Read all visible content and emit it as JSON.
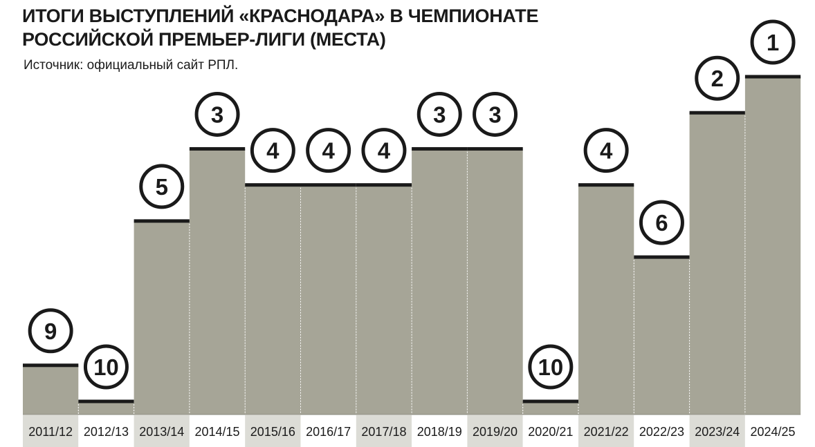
{
  "header": {
    "title_line1": "ИТОГИ ВЫСТУПЛЕНИЙ «КРАСНОДАРА» В ЧЕМПИОНАТЕ",
    "title_line2": "РОССИЙСКОЙ ПРЕМЬЕР-ЛИГИ (МЕСТА)",
    "source": "Источник: официальный сайт РПЛ."
  },
  "chart_data": {
    "type": "bar",
    "title": "ИТОГИ ВЫСТУПЛЕНИЙ «КРАСНОДАРА» В ЧЕМПИОНАТЕ РОССИЙСКОЙ ПРЕМЬЕР-ЛИГИ (МЕСТА)",
    "xlabel": "",
    "ylabel": "",
    "categories": [
      "2011/12",
      "2012/13",
      "2013/14",
      "2014/15",
      "2015/16",
      "2016/17",
      "2017/18",
      "2018/19",
      "2019/20",
      "2020/21",
      "2021/22",
      "2022/23",
      "2023/24",
      "2024/25"
    ],
    "values": [
      9,
      10,
      5,
      3,
      4,
      4,
      4,
      3,
      3,
      10,
      4,
      6,
      2,
      1
    ],
    "data_labels": [
      "9",
      "10",
      "5",
      "3",
      "4",
      "4",
      "4",
      "3",
      "3",
      "10",
      "4",
      "6",
      "2",
      "1"
    ],
    "y_axis": "place (inverted: 1st place is the tallest bar)",
    "ylim": [
      11,
      1
    ],
    "grid": false,
    "legend": "none",
    "colors": {
      "bar": "#a6a597",
      "bar_top": "#1a1a1a",
      "badge_stroke": "#1a1a1a",
      "badge_fill": "#ffffff",
      "tick_band_shaded": "#dcdcd6",
      "tick_band_plain": "#ffffff"
    }
  }
}
